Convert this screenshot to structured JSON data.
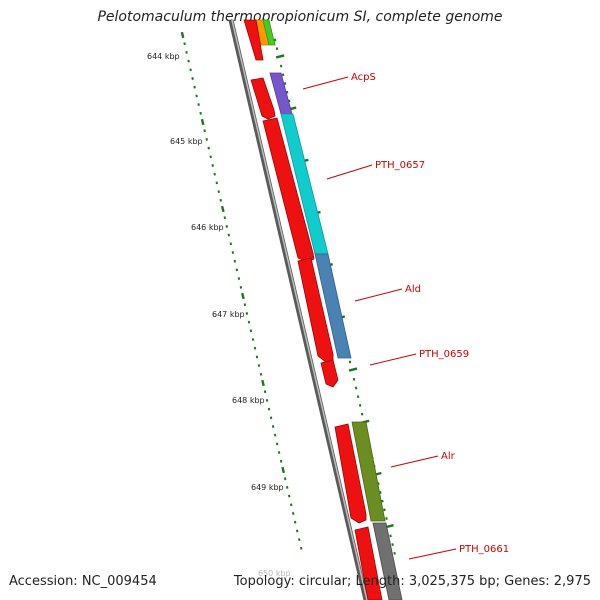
{
  "title": "Pelotomaculum thermopropionicum SI, complete genome",
  "footer": {
    "accession": "Accession: NC_009454",
    "summary": "Topology: circular; Length: 3,025,375 bp; Genes: 2,975"
  },
  "scale_labels": [
    {
      "text": "644 kbp",
      "position_kbp": 644
    },
    {
      "text": "645 kbp",
      "position_kbp": 645
    },
    {
      "text": "646 kbp",
      "position_kbp": 646
    },
    {
      "text": "647 kbp",
      "position_kbp": 647
    },
    {
      "text": "648 kbp",
      "position_kbp": 648
    },
    {
      "text": "649 kbp",
      "position_kbp": 649
    },
    {
      "text": "650 kbp",
      "position_kbp": 650
    }
  ],
  "gene_labels": [
    {
      "text": "AcpS"
    },
    {
      "text": "PTH_0657"
    },
    {
      "text": "Ald"
    },
    {
      "text": "PTH_0659"
    },
    {
      "text": "Alr"
    },
    {
      "text": "PTH_0661"
    }
  ],
  "colors": {
    "backbone": "#888888",
    "tick": "#1a7a1a",
    "cds": "#ee1111",
    "label": "#cc0000",
    "genes": [
      "#ff9900",
      "#44cc22",
      "#7755cc",
      "#11cccc",
      "#4a82b4",
      "#6b8e23",
      "#707070"
    ]
  }
}
